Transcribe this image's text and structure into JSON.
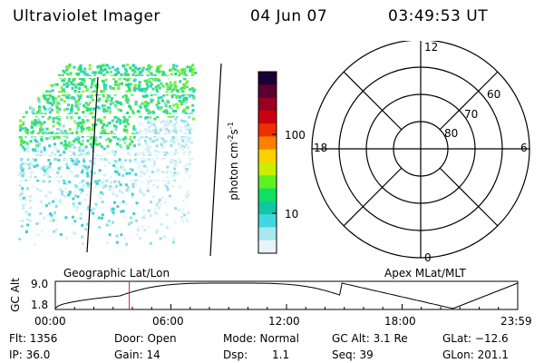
{
  "header": {
    "title": "Ultraviolet Imager",
    "date": "04 Jun 07",
    "time": "03:49:53 UT"
  },
  "colorbar": {
    "label": "photon cm",
    "label_sup1": "-2",
    "label_mid": "s",
    "label_sup2": "-1",
    "tick_high": "100",
    "tick_low": "10",
    "colors": [
      "#1a0033",
      "#5a0033",
      "#9a0020",
      "#cc0010",
      "#ee3000",
      "#ff8000",
      "#ffd000",
      "#c8f000",
      "#60f020",
      "#10e060",
      "#10c8a0",
      "#40d8e0",
      "#a8e8f0",
      "#e8f4f8"
    ]
  },
  "polar": {
    "mlt_top": "12",
    "mlt_left": "18",
    "mlt_right": "6",
    "mlt_bottom": "0",
    "lat_60": "60",
    "lat_70": "70",
    "lat_80": "80"
  },
  "timeline": {
    "left_label": "Geographic Lat/Lon",
    "right_label": "Apex MLat/MLT",
    "axis_title": "GC Alt",
    "y_high": "9.0",
    "y_low": "1.8",
    "ticks": [
      "00:00",
      "06:00",
      "12:00",
      "18:00",
      "23:59"
    ],
    "current_time_fraction": 0.16
  },
  "info": {
    "flt": "Flt: 1356",
    "ip": "IP: 36.0",
    "door": "Door: Open",
    "gain": "Gain: 14",
    "mode": "Mode: Normal",
    "dsp_label": "Dsp:",
    "dsp_value": "1.1",
    "gc_alt": "GC Alt: 3.1 Re",
    "seq": "Seq: 39",
    "glat": "GLat: −12.6",
    "glon": "GLon: 201.1"
  }
}
